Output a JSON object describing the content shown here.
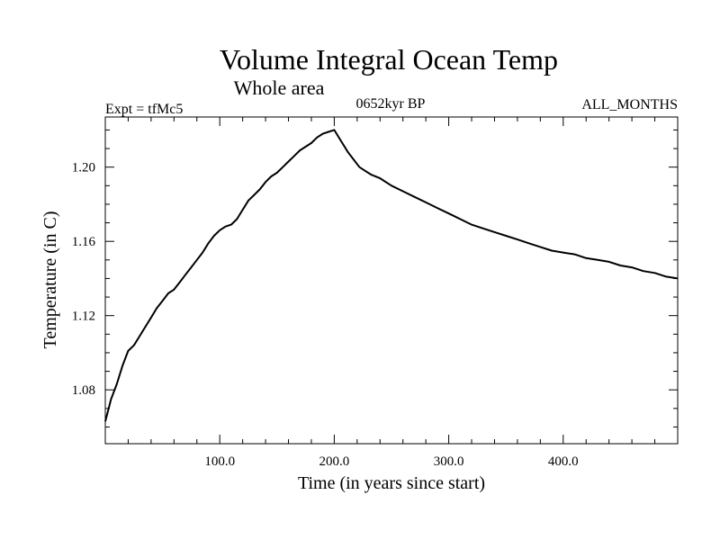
{
  "chart_data": {
    "type": "line",
    "title": "Volume Integral Ocean Temp",
    "subtitle": "Whole area",
    "header_left": "Expt = tfMc5",
    "header_center": "0652kyr BP",
    "header_right": "ALL_MONTHS",
    "xlabel": "Time (in years since start)",
    "ylabel": "Temperature (in C)",
    "xlim": [
      0,
      500
    ],
    "ylim": [
      1.051,
      1.227
    ],
    "x_ticks": [
      {
        "value": 100,
        "label": "100.0"
      },
      {
        "value": 200,
        "label": "200.0"
      },
      {
        "value": 300,
        "label": "300.0"
      },
      {
        "value": 400,
        "label": "400.0"
      }
    ],
    "x_minor_step": 20,
    "y_ticks": [
      {
        "value": 1.08,
        "label": "1.08"
      },
      {
        "value": 1.12,
        "label": "1.12"
      },
      {
        "value": 1.16,
        "label": "1.16"
      },
      {
        "value": 1.2,
        "label": "1.20"
      }
    ],
    "y_minor_step": 0.01,
    "grid": false,
    "series": [
      {
        "name": "Volume integral ocean temperature",
        "color": "#000000",
        "x": [
          0,
          5,
          10,
          15,
          20,
          25,
          30,
          35,
          40,
          45,
          50,
          55,
          60,
          65,
          70,
          75,
          80,
          85,
          90,
          95,
          100,
          105,
          110,
          115,
          120,
          125,
          130,
          135,
          140,
          145,
          150,
          155,
          160,
          165,
          170,
          175,
          180,
          185,
          190,
          195,
          200,
          203,
          207,
          212,
          217,
          222,
          227,
          232,
          240,
          250,
          260,
          270,
          280,
          290,
          300,
          310,
          320,
          330,
          340,
          350,
          360,
          370,
          380,
          390,
          400,
          410,
          420,
          430,
          440,
          450,
          460,
          470,
          480,
          490,
          500
        ],
        "y": [
          1.063,
          1.075,
          1.083,
          1.093,
          1.101,
          1.104,
          1.109,
          1.114,
          1.119,
          1.124,
          1.128,
          1.132,
          1.134,
          1.138,
          1.142,
          1.146,
          1.15,
          1.154,
          1.159,
          1.163,
          1.166,
          1.168,
          1.169,
          1.172,
          1.177,
          1.182,
          1.185,
          1.188,
          1.192,
          1.195,
          1.197,
          1.2,
          1.203,
          1.206,
          1.209,
          1.211,
          1.213,
          1.216,
          1.218,
          1.219,
          1.22,
          1.217,
          1.213,
          1.208,
          1.204,
          1.2,
          1.198,
          1.196,
          1.194,
          1.19,
          1.187,
          1.184,
          1.181,
          1.178,
          1.175,
          1.172,
          1.169,
          1.167,
          1.165,
          1.163,
          1.161,
          1.159,
          1.157,
          1.155,
          1.154,
          1.153,
          1.151,
          1.15,
          1.149,
          1.147,
          1.146,
          1.144,
          1.143,
          1.141,
          1.14
        ]
      }
    ]
  }
}
